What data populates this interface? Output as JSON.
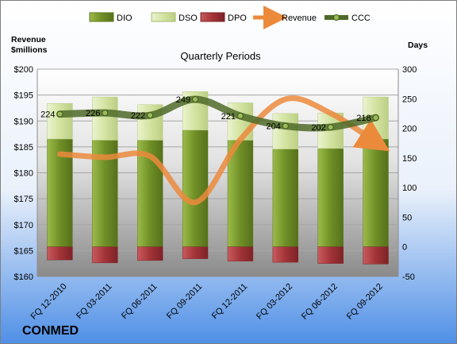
{
  "chart_data": {
    "type": "bar",
    "title": "Quarterly Periods",
    "company": "CONMED",
    "y_left_label_line1": "Revenue",
    "y_left_label_line2": "$millions",
    "y_right_label": "Days",
    "categories": [
      "FQ 12-2010",
      "FQ 03-2011",
      "FQ 06-2011",
      "FQ 09-2011",
      "FQ 12-2011",
      "FQ 03-2012",
      "FQ 06-2012",
      "FQ 09-2012"
    ],
    "y_left": {
      "min": 160,
      "max": 200,
      "step": 5,
      "ticks": [
        "$160",
        "$165",
        "$170",
        "$175",
        "$180",
        "$185",
        "$190",
        "$195",
        "$200"
      ]
    },
    "y_right": {
      "min": -50,
      "max": 300,
      "step": 50,
      "ticks": [
        "-50",
        "0",
        "50",
        "100",
        "150",
        "200",
        "250",
        "300"
      ]
    },
    "legend": {
      "position": "top",
      "items": [
        {
          "key": "dio",
          "label": "DIO"
        },
        {
          "key": "dso",
          "label": "DSO"
        },
        {
          "key": "dpo",
          "label": "DPO"
        },
        {
          "key": "revenue",
          "label": "Revenue"
        },
        {
          "key": "ccc",
          "label": "CCC"
        }
      ]
    },
    "series": [
      {
        "name": "DIO",
        "axis": "right",
        "stack": "positive",
        "color": "#7a9a2c",
        "values": [
          182,
          180,
          180,
          197,
          180,
          165,
          166,
          182
        ]
      },
      {
        "name": "DSO",
        "axis": "right",
        "stack": "positive",
        "color": "#d6e6a6",
        "values": [
          60,
          73,
          60,
          65,
          63,
          60,
          60,
          71
        ]
      },
      {
        "name": "DPO",
        "axis": "right",
        "stack": "negative",
        "color": "#a8383c",
        "values": [
          -22,
          -27,
          -23,
          -20,
          -24,
          -26,
          -28,
          -29
        ]
      },
      {
        "name": "Revenue",
        "axis": "left",
        "type": "line",
        "color": "#ec8a3c",
        "values": [
          183.6,
          183.0,
          183.2,
          174.3,
          186.4,
          194.2,
          191.5,
          185.9
        ]
      },
      {
        "name": "CCC",
        "axis": "right",
        "type": "line",
        "color": "#4f6a28",
        "values": [
          224,
          226,
          222,
          249,
          221,
          204,
          202,
          218
        ],
        "labels": [
          "224",
          "226",
          "222",
          "249",
          "221",
          "204",
          "202",
          "218"
        ]
      }
    ],
    "colors": {
      "background_top": "#ffffff",
      "background_bottom": "#4f8fe6",
      "plot_top": "#ffffff",
      "plot_bottom": "#8c8c8c",
      "grid": "#a6a6a6"
    }
  }
}
